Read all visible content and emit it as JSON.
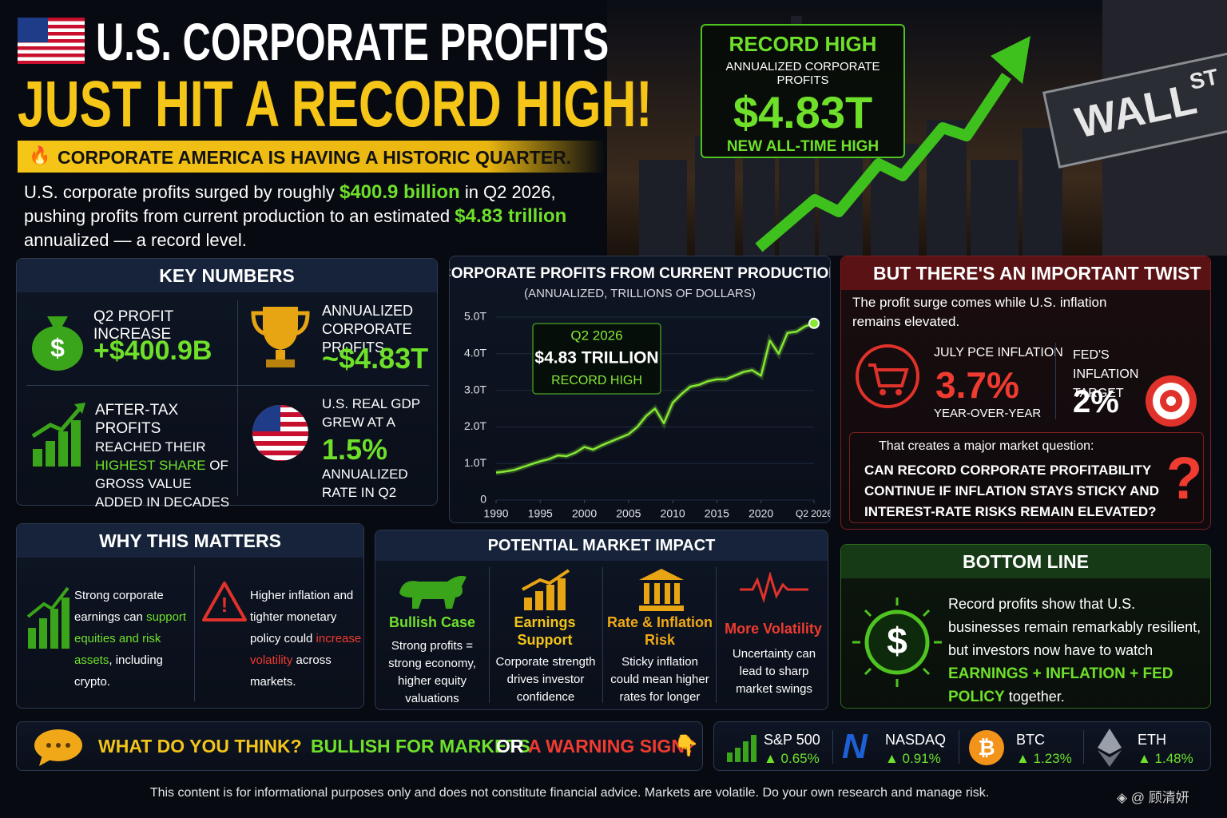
{
  "header": {
    "title_1": "U.S. CORPORATE PROFITS",
    "title_2": "JUST HIT A RECORD HIGH!",
    "banner": "CORPORATE AMERICA IS HAVING A HISTORIC QUARTER.",
    "intro": [
      "U.S. corporate profits surged by roughly ",
      "$400.9 billion",
      " in Q2 2026, pushing profits from current production to an estimated ",
      "$4.83 trillion",
      " annualized — a record level."
    ]
  },
  "record_box": {
    "label": "RECORD HIGH",
    "sub": "ANNUALIZED CORPORATE PROFITS",
    "value": "$4.83T",
    "note": "NEW ALL-TIME HIGH"
  },
  "street_sign": {
    "name": "WALL",
    "suffix": "ST"
  },
  "key_numbers": {
    "title": "KEY NUMBERS",
    "q2_increase": {
      "label": "Q2 PROFIT INCREASE",
      "value": "+$400.9B"
    },
    "annualized": {
      "label": "ANNUALIZED CORPORATE PROFITS",
      "value": "~$4.83T"
    },
    "after_tax": {
      "title": "AFTER-TAX PROFITS",
      "text": [
        "REACHED THEIR ",
        "HIGHEST SHARE",
        " OF GROSS VALUE ADDED IN DECADES"
      ]
    },
    "gdp": {
      "label": "U.S. REAL GDP GREW AT A",
      "value": "1.5%",
      "note": "ANNUALIZED RATE IN Q2"
    }
  },
  "chart_data": {
    "type": "line",
    "title": "CORPORATE PROFITS FROM CURRENT PRODUCTION",
    "subtitle": "(ANNUALIZED, TRILLIONS OF DOLLARS)",
    "annotations": [
      "Q2 2026",
      "$4.83 TRILLION",
      "RECORD HIGH"
    ],
    "x": [
      1990,
      1991,
      1992,
      1993,
      1994,
      1995,
      1996,
      1997,
      1998,
      1999,
      2000,
      2001,
      2002,
      2003,
      2004,
      2005,
      2006,
      2007,
      2008,
      2009,
      2010,
      2011,
      2012,
      2013,
      2014,
      2015,
      2016,
      2017,
      2018,
      2019,
      2020,
      2021,
      2022,
      2023,
      2024,
      2025,
      2026
    ],
    "series": [
      {
        "color": "#86e834",
        "values": [
          0.75,
          0.78,
          0.82,
          0.9,
          0.98,
          1.06,
          1.12,
          1.22,
          1.2,
          1.3,
          1.45,
          1.38,
          1.5,
          1.6,
          1.7,
          1.8,
          2.0,
          2.3,
          2.5,
          2.1,
          2.66,
          2.9,
          3.1,
          3.15,
          3.25,
          3.3,
          3.3,
          3.4,
          3.5,
          3.55,
          3.4,
          4.36,
          4.0,
          4.57,
          4.6,
          4.75,
          4.83
        ]
      }
    ],
    "xlim": [
      1990,
      2026
    ],
    "ylim": [
      0,
      5
    ],
    "xticks": [
      1990,
      1995,
      2000,
      2005,
      2010,
      2015,
      2020,
      {
        "value": 2026,
        "label": "Q2 2026"
      }
    ],
    "yticks": [
      0,
      {
        "value": 1,
        "label": "1.0T"
      },
      {
        "value": 2,
        "label": "2.0T"
      },
      {
        "value": 3,
        "label": "3.0T"
      },
      {
        "value": 4,
        "label": "4.0T"
      },
      {
        "value": 5,
        "label": "5.0T"
      }
    ],
    "grid": true
  },
  "twist": {
    "title": "BUT THERE'S AN IMPORTANT TWIST",
    "intro": "The profit surge comes while U.S. inflation remains elevated.",
    "pce_label": "JULY PCE INFLATION",
    "pce_value": "3.7%",
    "pce_note": "YEAR-OVER-YEAR",
    "target_label": "FED'S INFLATION TARGET",
    "target_value": "2%",
    "question_intro": "That creates a major market question:",
    "question": "CAN RECORD CORPORATE PROFITABILITY CONTINUE IF INFLATION STAYS STICKY AND INTEREST-RATE RISKS REMAIN ELEVATED?"
  },
  "why": {
    "title": "WHY THIS MATTERS",
    "items": [
      [
        "Strong corporate earnings can ",
        "support equities and risk assets",
        ", including crypto."
      ],
      [
        "Higher inflation and tighter monetary policy could ",
        "increase volatility",
        " across markets."
      ]
    ]
  },
  "market_impact": {
    "title": "POTENTIAL MARKET IMPACT",
    "items": [
      {
        "title": "Bullish Case",
        "text": "Strong profits = strong economy, higher equity valuations"
      },
      {
        "title": "Earnings Support",
        "text": "Corporate strength drives investor confidence"
      },
      {
        "title": "Rate & Inflation Risk",
        "text": "Sticky inflation could mean higher rates for longer"
      },
      {
        "title": "More Volatility",
        "text": "Uncertainty can lead to sharp market swings"
      }
    ]
  },
  "bottom_line": {
    "title": "BOTTOM LINE",
    "text": [
      "Record profits show that U.S. businesses remain remarkably resilient, but investors now have to watch ",
      "EARNINGS + INFLATION + FED POLICY",
      " together."
    ]
  },
  "cta": {
    "question": "WHAT DO YOU THINK?",
    "option_1": "BULLISH FOR MARKETS",
    "or": "OR",
    "option_2": "A WARNING SIGN?"
  },
  "tickers": [
    {
      "name": "S&P 500",
      "change": "▲ 0.65%"
    },
    {
      "name": "NASDAQ",
      "change": "▲ 0.91%"
    },
    {
      "name": "BTC",
      "change": "▲ 1.23%"
    },
    {
      "name": "ETH",
      "change": "▲ 1.48%"
    }
  ],
  "footer": {
    "disclaimer": "This content is for informational purposes only and does not constitute financial advice. Markets are volatile. Do your own research and manage risk.",
    "watermark": "@ 顾清妍"
  }
}
